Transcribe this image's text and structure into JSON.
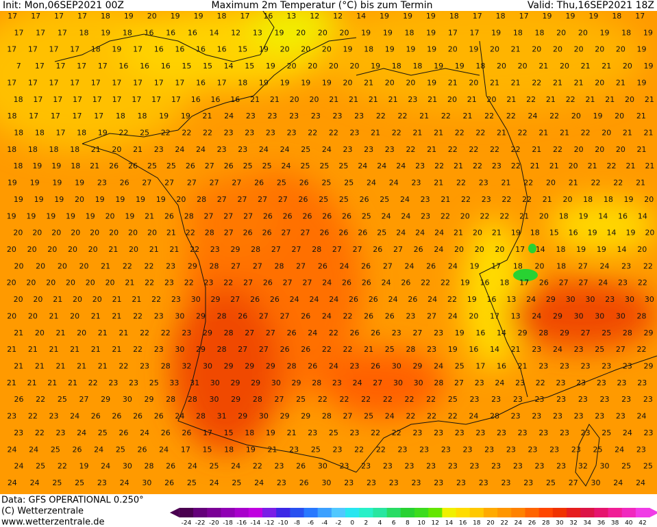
{
  "header": {
    "init": "Init: Mon,06SEP2021 00Z",
    "title": "Maximum 2m Temperatur (°C) bis zum Termin",
    "valid": "Valid: Thu,16SEP2021 18Z"
  },
  "grid": {
    "rows": [
      [
        17,
        17,
        17,
        17,
        18,
        19,
        20,
        19,
        19,
        18,
        17,
        16,
        13,
        12,
        12,
        14,
        19,
        19,
        19,
        18,
        17,
        18,
        17,
        19,
        19,
        19,
        18,
        17
      ],
      [
        17,
        17,
        17,
        18,
        19,
        18,
        16,
        16,
        16,
        14,
        12,
        13,
        19,
        20,
        20,
        20,
        19,
        19,
        18,
        19,
        17,
        17,
        19,
        18,
        18,
        20,
        20,
        19,
        18,
        19
      ],
      [
        17,
        17,
        17,
        17,
        18,
        19,
        17,
        16,
        16,
        16,
        16,
        15,
        19,
        20,
        20,
        20,
        19,
        18,
        19,
        19,
        19,
        20,
        19,
        20,
        21,
        20,
        20,
        20,
        20,
        20,
        19
      ],
      [
        7,
        17,
        17,
        17,
        17,
        16,
        16,
        16,
        15,
        15,
        14,
        15,
        19,
        20,
        20,
        20,
        20,
        19,
        18,
        18,
        19,
        19,
        18,
        20,
        20,
        21,
        20,
        21,
        21,
        20,
        19
      ],
      [
        17,
        17,
        17,
        17,
        17,
        17,
        17,
        17,
        17,
        16,
        17,
        18,
        19,
        19,
        19,
        19,
        20,
        21,
        20,
        20,
        19,
        21,
        20,
        21,
        21,
        22,
        21,
        21,
        20,
        21,
        19
      ],
      [
        18,
        17,
        17,
        17,
        17,
        17,
        17,
        17,
        17,
        16,
        16,
        16,
        21,
        21,
        20,
        20,
        21,
        21,
        21,
        21,
        23,
        21,
        20,
        21,
        20,
        21,
        22,
        21,
        22,
        21,
        21,
        20,
        21
      ],
      [
        18,
        17,
        17,
        17,
        17,
        18,
        18,
        19,
        19,
        21,
        24,
        23,
        23,
        23,
        23,
        23,
        23,
        22,
        22,
        21,
        22,
        21,
        22,
        22,
        24,
        22,
        20,
        19,
        20,
        21
      ],
      [
        18,
        18,
        17,
        18,
        19,
        22,
        25,
        22,
        22,
        22,
        23,
        23,
        23,
        23,
        22,
        22,
        23,
        21,
        22,
        21,
        21,
        22,
        22,
        21,
        22,
        21,
        21,
        22,
        20,
        21,
        21
      ],
      [
        18,
        18,
        18,
        18,
        21,
        20,
        21,
        23,
        24,
        24,
        23,
        23,
        24,
        24,
        25,
        24,
        23,
        23,
        23,
        22,
        21,
        22,
        22,
        22,
        22,
        21,
        22,
        20,
        20,
        20,
        21
      ],
      [
        18,
        19,
        19,
        18,
        21,
        26,
        26,
        25,
        25,
        26,
        27,
        26,
        25,
        25,
        24,
        25,
        25,
        25,
        24,
        24,
        24,
        23,
        22,
        21,
        22,
        23,
        22,
        21,
        21,
        20,
        21,
        22,
        21,
        21
      ],
      [
        19,
        19,
        19,
        19,
        23,
        26,
        27,
        27,
        27,
        27,
        27,
        26,
        25,
        26,
        25,
        25,
        24,
        24,
        23,
        21,
        22,
        23,
        21,
        22,
        20,
        21,
        22,
        22,
        21
      ],
      [
        19,
        19,
        19,
        20,
        19,
        19,
        19,
        19,
        20,
        28,
        27,
        27,
        27,
        27,
        26,
        25,
        25,
        26,
        25,
        24,
        23,
        21,
        22,
        23,
        22,
        22,
        21,
        20,
        18,
        18,
        19,
        20
      ],
      [
        19,
        19,
        19,
        19,
        19,
        20,
        19,
        21,
        26,
        28,
        27,
        27,
        27,
        26,
        26,
        26,
        26,
        26,
        25,
        24,
        24,
        23,
        22,
        20,
        22,
        22,
        21,
        20,
        18,
        19,
        14,
        16,
        14
      ],
      [
        20,
        20,
        20,
        20,
        20,
        20,
        20,
        20,
        21,
        22,
        28,
        27,
        26,
        26,
        27,
        27,
        26,
        26,
        26,
        25,
        24,
        24,
        24,
        21,
        20,
        21,
        19,
        18,
        15,
        16,
        19,
        14,
        19,
        20
      ],
      [
        20,
        20,
        20,
        20,
        20,
        21,
        20,
        21,
        21,
        22,
        23,
        29,
        28,
        27,
        27,
        28,
        27,
        27,
        26,
        27,
        26,
        24,
        20,
        20,
        20,
        17,
        14,
        18,
        19,
        19,
        14,
        20
      ],
      [
        20,
        20,
        20,
        20,
        21,
        22,
        22,
        23,
        29,
        28,
        27,
        27,
        28,
        27,
        26,
        24,
        26,
        27,
        24,
        26,
        24,
        19,
        17,
        18,
        20,
        18,
        27,
        24,
        23,
        22
      ],
      [
        20,
        20,
        20,
        20,
        20,
        20,
        21,
        22,
        23,
        22,
        23,
        22,
        27,
        26,
        27,
        27,
        24,
        26,
        26,
        24,
        26,
        22,
        22,
        19,
        16,
        18,
        17,
        26,
        27,
        27,
        24,
        23,
        22
      ],
      [
        20,
        20,
        21,
        20,
        20,
        21,
        21,
        22,
        23,
        30,
        29,
        27,
        26,
        26,
        24,
        24,
        24,
        26,
        26,
        24,
        26,
        24,
        22,
        19,
        16,
        13,
        24,
        29,
        30,
        30,
        23,
        30,
        30
      ],
      [
        20,
        20,
        21,
        20,
        21,
        21,
        22,
        23,
        30,
        29,
        28,
        26,
        27,
        27,
        26,
        24,
        22,
        26,
        26,
        23,
        27,
        24,
        20,
        17,
        13,
        24,
        29,
        30,
        30,
        30,
        28
      ],
      [
        21,
        20,
        21,
        20,
        21,
        21,
        22,
        22,
        23,
        29,
        28,
        27,
        27,
        26,
        24,
        22,
        26,
        26,
        23,
        27,
        23,
        19,
        16,
        14,
        29,
        28,
        29,
        27,
        25,
        28,
        29
      ],
      [
        21,
        21,
        21,
        21,
        21,
        21,
        22,
        23,
        30,
        29,
        28,
        27,
        27,
        26,
        26,
        22,
        22,
        21,
        25,
        28,
        23,
        19,
        16,
        14,
        21,
        23,
        24,
        23,
        25,
        27,
        22
      ],
      [
        21,
        21,
        21,
        21,
        21,
        22,
        23,
        28,
        32,
        30,
        29,
        29,
        29,
        28,
        26,
        24,
        23,
        26,
        30,
        29,
        24,
        25,
        17,
        16,
        21,
        23,
        23,
        23,
        23,
        23,
        29
      ],
      [
        21,
        21,
        21,
        21,
        22,
        23,
        23,
        25,
        33,
        31,
        30,
        29,
        29,
        30,
        29,
        28,
        23,
        24,
        27,
        30,
        30,
        28,
        27,
        23,
        24,
        23,
        22,
        23,
        23,
        23,
        23,
        23
      ],
      [
        26,
        22,
        25,
        27,
        29,
        30,
        29,
        28,
        28,
        30,
        29,
        28,
        27,
        25,
        22,
        22,
        22,
        22,
        22,
        22,
        25,
        23,
        23,
        23,
        23,
        23,
        23,
        23,
        23,
        23
      ],
      [
        23,
        22,
        23,
        24,
        26,
        26,
        26,
        26,
        24,
        28,
        31,
        29,
        30,
        29,
        29,
        28,
        27,
        25,
        24,
        22,
        22,
        22,
        24,
        28,
        23,
        23,
        23,
        23,
        23,
        23,
        24
      ],
      [
        23,
        22,
        23,
        24,
        25,
        26,
        24,
        26,
        26,
        17,
        15,
        18,
        19,
        21,
        23,
        25,
        23,
        22,
        22,
        23,
        23,
        23,
        23,
        23,
        23,
        23,
        23,
        23,
        25,
        24,
        23
      ],
      [
        24,
        24,
        25,
        26,
        24,
        25,
        26,
        24,
        17,
        15,
        18,
        19,
        21,
        23,
        25,
        23,
        22,
        22,
        23,
        23,
        23,
        23,
        23,
        23,
        23,
        23,
        23,
        25,
        24,
        23
      ],
      [
        24,
        25,
        22,
        19,
        24,
        30,
        28,
        26,
        24,
        25,
        24,
        22,
        23,
        26,
        30,
        23,
        23,
        23,
        23,
        23,
        23,
        23,
        23,
        23,
        23,
        23,
        32,
        30,
        25,
        25
      ],
      [
        24,
        24,
        25,
        25,
        23,
        24,
        30,
        26,
        25,
        24,
        25,
        24,
        23,
        26,
        30,
        23,
        23,
        23,
        23,
        23,
        23,
        23,
        23,
        23,
        25,
        27,
        30,
        24,
        24
      ]
    ]
  },
  "footer": {
    "data": "Data: GFS OPERATIONAL 0.250°",
    "copyright": "(C) Wetterzentrale",
    "url": "www.wetterzentrale.de"
  },
  "legend": {
    "ticks": [
      -24,
      -22,
      -20,
      -18,
      -16,
      -14,
      -12,
      -10,
      -8,
      -6,
      -4,
      -2,
      0,
      2,
      4,
      6,
      8,
      10,
      12,
      14,
      16,
      18,
      20,
      22,
      24,
      26,
      28,
      30,
      32,
      34,
      36,
      38,
      40,
      42
    ],
    "colors": [
      "#4a0050",
      "#64007a",
      "#7a0096",
      "#9000b4",
      "#a800cc",
      "#c000e0",
      "#7a1ee6",
      "#3c28e6",
      "#2850f0",
      "#2878ff",
      "#3ca0ff",
      "#50c8ff",
      "#28e6f0",
      "#28f0c8",
      "#28e6a0",
      "#28dc64",
      "#28d232",
      "#3cdc1e",
      "#64e600",
      "#f0f000",
      "#ffdc00",
      "#ffc800",
      "#ffaa00",
      "#ff9600",
      "#ff8200",
      "#ff6400",
      "#ff4600",
      "#f03200",
      "#e61e1e",
      "#dc1446",
      "#e6146e",
      "#f01e96",
      "#f028be",
      "#f03ce6"
    ]
  }
}
